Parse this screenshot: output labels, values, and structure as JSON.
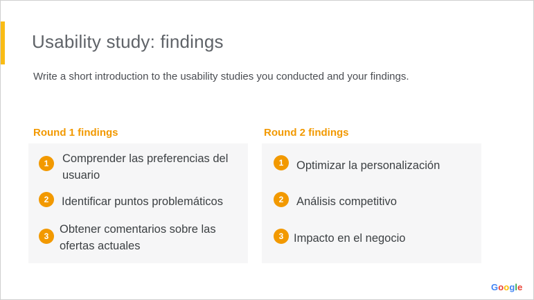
{
  "slide": {
    "title": "Usability study: findings",
    "subtitle": "Write a short introduction to the usability studies you conducted and your findings.",
    "accent_color": "#f9bc15"
  },
  "round1": {
    "heading": "Round 1 findings",
    "items": [
      {
        "number": "1",
        "text": "Comprender las preferencias del usuario"
      },
      {
        "number": "2",
        "text": "Identificar puntos problemáticos"
      },
      {
        "number": "3",
        "text": "Obtener comentarios sobre las ofertas actuales"
      }
    ]
  },
  "round2": {
    "heading": "Round 2 findings",
    "items": [
      {
        "number": "1",
        "text": "Optimizar la personalización"
      },
      {
        "number": "2",
        "text": "Análisis competitivo"
      },
      {
        "number": "3",
        "text": "Impacto en el negocio"
      }
    ]
  },
  "colors": {
    "heading": "#f29900",
    "badge": "#f29900",
    "card_background": "#f6f6f7"
  },
  "logo": {
    "text": "Google",
    "letter_colors": [
      "#4285f4",
      "#ea4335",
      "#fbbc05",
      "#4285f4",
      "#34a853",
      "#ea4335"
    ]
  }
}
